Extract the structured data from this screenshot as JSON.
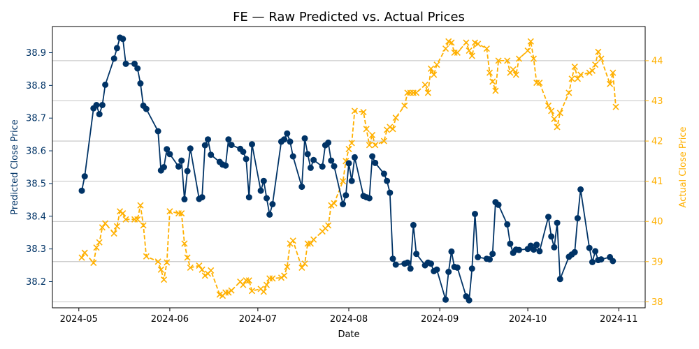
{
  "chart_data": {
    "type": "line",
    "title": "FE — Raw Predicted vs. Actual Prices",
    "xlabel": "Date",
    "ylabel_left": "Predicted Close Price",
    "ylabel_right": "Actual Close Price",
    "x_ticks": [
      "2024-05",
      "2024-06",
      "2024-07",
      "2024-08",
      "2024-09",
      "2024-10",
      "2024-11"
    ],
    "y_left_ticks": [
      "38.2",
      "38.3",
      "38.4",
      "38.5",
      "38.6",
      "38.7",
      "38.8",
      "38.9"
    ],
    "y_right_ticks": [
      "38",
      "39",
      "40",
      "41",
      "42",
      "43",
      "44"
    ],
    "ylim_left": [
      38.12,
      38.98
    ],
    "ylim_right": [
      37.85,
      44.85
    ],
    "grid": "horizontal, right axis",
    "colors": {
      "predicted": "#003366",
      "actual": "#FFB000",
      "grid": "#b0b0b0"
    },
    "series": [
      {
        "axis": "left",
        "style": "solid, circle markers",
        "points": [
          [
            "2024-05-02",
            38.478
          ],
          [
            "2024-05-03",
            38.522
          ],
          [
            "2024-05-06",
            38.73
          ],
          [
            "2024-05-07",
            38.74
          ],
          [
            "2024-05-08",
            38.712
          ],
          [
            "2024-05-09",
            38.74
          ],
          [
            "2024-05-10",
            38.802
          ],
          [
            "2024-05-13",
            38.882
          ],
          [
            "2024-05-14",
            38.914
          ],
          [
            "2024-05-15",
            38.946
          ],
          [
            "2024-05-16",
            38.942
          ],
          [
            "2024-05-17",
            38.866
          ],
          [
            "2024-05-20",
            38.866
          ],
          [
            "2024-05-21",
            38.852
          ],
          [
            "2024-05-22",
            38.806
          ],
          [
            "2024-05-23",
            38.738
          ],
          [
            "2024-05-24",
            38.728
          ],
          [
            "2024-05-28",
            38.66
          ],
          [
            "2024-05-29",
            38.54
          ],
          [
            "2024-05-30",
            38.55
          ],
          [
            "2024-05-31",
            38.605
          ],
          [
            "2024-06-01",
            38.59
          ],
          [
            "2024-06-04",
            38.552
          ],
          [
            "2024-06-05",
            38.57
          ],
          [
            "2024-06-06",
            38.452
          ],
          [
            "2024-06-07",
            38.538
          ],
          [
            "2024-06-08",
            38.607
          ],
          [
            "2024-06-11",
            38.453
          ],
          [
            "2024-06-12",
            38.458
          ],
          [
            "2024-06-13",
            38.617
          ],
          [
            "2024-06-14",
            38.635
          ],
          [
            "2024-06-15",
            38.588
          ],
          [
            "2024-06-18",
            38.566
          ],
          [
            "2024-06-19",
            38.558
          ],
          [
            "2024-06-20",
            38.555
          ],
          [
            "2024-06-21",
            38.635
          ],
          [
            "2024-06-22",
            38.618
          ],
          [
            "2024-06-25",
            38.606
          ],
          [
            "2024-06-26",
            38.597
          ],
          [
            "2024-06-27",
            38.575
          ],
          [
            "2024-06-28",
            38.458
          ],
          [
            "2024-06-29",
            38.62
          ],
          [
            "2024-07-02",
            38.478
          ],
          [
            "2024-07-03",
            38.508
          ],
          [
            "2024-07-04",
            38.455
          ],
          [
            "2024-07-05",
            38.405
          ],
          [
            "2024-07-06",
            38.437
          ],
          [
            "2024-07-09",
            38.628
          ],
          [
            "2024-07-10",
            38.635
          ],
          [
            "2024-07-11",
            38.653
          ],
          [
            "2024-07-12",
            38.628
          ],
          [
            "2024-07-13",
            38.583
          ],
          [
            "2024-07-16",
            38.49
          ],
          [
            "2024-07-17",
            38.638
          ],
          [
            "2024-07-18",
            38.59
          ],
          [
            "2024-07-19",
            38.548
          ],
          [
            "2024-07-20",
            38.572
          ],
          [
            "2024-07-23",
            38.552
          ],
          [
            "2024-07-24",
            38.617
          ],
          [
            "2024-07-25",
            38.625
          ],
          [
            "2024-07-26",
            38.57
          ],
          [
            "2024-07-27",
            38.553
          ],
          [
            "2024-07-30",
            38.437
          ],
          [
            "2024-07-31",
            38.464
          ],
          [
            "2024-08-01",
            38.562
          ],
          [
            "2024-08-02",
            38.508
          ],
          [
            "2024-08-03",
            38.58
          ],
          [
            "2024-08-06",
            38.462
          ],
          [
            "2024-08-07",
            38.458
          ],
          [
            "2024-08-08",
            38.455
          ],
          [
            "2024-08-09",
            38.583
          ],
          [
            "2024-08-10",
            38.563
          ],
          [
            "2024-08-13",
            38.53
          ],
          [
            "2024-08-14",
            38.508
          ],
          [
            "2024-08-15",
            38.472
          ],
          [
            "2024-08-16",
            38.27
          ],
          [
            "2024-08-17",
            38.252
          ],
          [
            "2024-08-20",
            38.255
          ],
          [
            "2024-08-21",
            38.258
          ],
          [
            "2024-08-22",
            38.24
          ],
          [
            "2024-08-23",
            38.373
          ],
          [
            "2024-08-24",
            38.285
          ],
          [
            "2024-08-27",
            38.25
          ],
          [
            "2024-08-28",
            38.258
          ],
          [
            "2024-08-29",
            38.255
          ],
          [
            "2024-08-30",
            38.232
          ],
          [
            "2024-08-31",
            38.237
          ],
          [
            "2024-09-03",
            38.145
          ],
          [
            "2024-09-04",
            38.23
          ],
          [
            "2024-09-05",
            38.292
          ],
          [
            "2024-09-06",
            38.245
          ],
          [
            "2024-09-07",
            38.243
          ],
          [
            "2024-09-10",
            38.155
          ],
          [
            "2024-09-11",
            38.143
          ],
          [
            "2024-09-12",
            38.24
          ],
          [
            "2024-09-13",
            38.407
          ],
          [
            "2024-09-14",
            38.275
          ],
          [
            "2024-09-17",
            38.27
          ],
          [
            "2024-09-18",
            38.268
          ],
          [
            "2024-09-19",
            38.285
          ],
          [
            "2024-09-20",
            38.443
          ],
          [
            "2024-09-21",
            38.435
          ],
          [
            "2024-09-24",
            38.375
          ],
          [
            "2024-09-25",
            38.316
          ],
          [
            "2024-09-26",
            38.288
          ],
          [
            "2024-09-27",
            38.298
          ],
          [
            "2024-09-28",
            38.297
          ],
          [
            "2024-10-01",
            38.3
          ],
          [
            "2024-10-02",
            38.31
          ],
          [
            "2024-10-03",
            38.298
          ],
          [
            "2024-10-04",
            38.313
          ],
          [
            "2024-10-05",
            38.293
          ],
          [
            "2024-10-08",
            38.398
          ],
          [
            "2024-10-09",
            38.338
          ],
          [
            "2024-10-10",
            38.305
          ],
          [
            "2024-10-11",
            38.38
          ],
          [
            "2024-10-12",
            38.208
          ],
          [
            "2024-10-15",
            38.276
          ],
          [
            "2024-10-16",
            38.283
          ],
          [
            "2024-10-17",
            38.29
          ],
          [
            "2024-10-18",
            38.394
          ],
          [
            "2024-10-19",
            38.482
          ],
          [
            "2024-10-22",
            38.303
          ],
          [
            "2024-10-23",
            38.26
          ],
          [
            "2024-10-24",
            38.293
          ],
          [
            "2024-10-25",
            38.266
          ],
          [
            "2024-10-26",
            38.268
          ],
          [
            "2024-10-29",
            38.275
          ],
          [
            "2024-10-30",
            38.263
          ]
        ]
      },
      {
        "axis": "right",
        "style": "dashed, x markers",
        "points": [
          [
            "2024-05-02",
            39.1
          ],
          [
            "2024-05-03",
            39.22
          ],
          [
            "2024-05-06",
            38.97
          ],
          [
            "2024-05-07",
            39.35
          ],
          [
            "2024-05-08",
            39.48
          ],
          [
            "2024-05-09",
            39.85
          ],
          [
            "2024-05-10",
            39.95
          ],
          [
            "2024-05-13",
            39.7
          ],
          [
            "2024-05-14",
            39.88
          ],
          [
            "2024-05-15",
            40.25
          ],
          [
            "2024-05-16",
            40.2
          ],
          [
            "2024-05-17",
            40.05
          ],
          [
            "2024-05-20",
            40.05
          ],
          [
            "2024-05-21",
            40.05
          ],
          [
            "2024-05-22",
            40.4
          ],
          [
            "2024-05-23",
            39.9
          ],
          [
            "2024-05-24",
            39.13
          ],
          [
            "2024-05-28",
            39.0
          ],
          [
            "2024-05-29",
            38.8
          ],
          [
            "2024-05-30",
            38.55
          ],
          [
            "2024-05-31",
            38.98
          ],
          [
            "2024-06-01",
            40.25
          ],
          [
            "2024-06-04",
            40.2
          ],
          [
            "2024-06-05",
            40.2
          ],
          [
            "2024-06-06",
            39.45
          ],
          [
            "2024-06-07",
            39.1
          ],
          [
            "2024-06-08",
            38.85
          ],
          [
            "2024-06-11",
            38.9
          ],
          [
            "2024-06-12",
            38.8
          ],
          [
            "2024-06-13",
            38.65
          ],
          [
            "2024-06-14",
            38.7
          ],
          [
            "2024-06-15",
            38.78
          ],
          [
            "2024-06-18",
            38.18
          ],
          [
            "2024-06-19",
            38.15
          ],
          [
            "2024-06-20",
            38.23
          ],
          [
            "2024-06-21",
            38.23
          ],
          [
            "2024-06-22",
            38.28
          ],
          [
            "2024-06-25",
            38.5
          ],
          [
            "2024-06-26",
            38.42
          ],
          [
            "2024-06-27",
            38.53
          ],
          [
            "2024-06-28",
            38.53
          ],
          [
            "2024-06-29",
            38.27
          ],
          [
            "2024-07-02",
            38.32
          ],
          [
            "2024-07-03",
            38.25
          ],
          [
            "2024-07-04",
            38.42
          ],
          [
            "2024-07-05",
            38.58
          ],
          [
            "2024-07-06",
            38.58
          ],
          [
            "2024-07-09",
            38.6
          ],
          [
            "2024-07-10",
            38.65
          ],
          [
            "2024-07-11",
            38.87
          ],
          [
            "2024-07-12",
            39.45
          ],
          [
            "2024-07-13",
            39.52
          ],
          [
            "2024-07-16",
            38.85
          ],
          [
            "2024-07-17",
            38.95
          ],
          [
            "2024-07-18",
            39.45
          ],
          [
            "2024-07-19",
            39.45
          ],
          [
            "2024-07-20",
            39.55
          ],
          [
            "2024-07-23",
            39.75
          ],
          [
            "2024-07-24",
            39.83
          ],
          [
            "2024-07-25",
            39.9
          ],
          [
            "2024-07-26",
            40.4
          ],
          [
            "2024-07-27",
            40.45
          ],
          [
            "2024-07-30",
            41.0
          ],
          [
            "2024-07-31",
            41.5
          ],
          [
            "2024-08-01",
            41.8
          ],
          [
            "2024-08-02",
            41.95
          ],
          [
            "2024-08-03",
            42.75
          ],
          [
            "2024-08-06",
            42.72
          ],
          [
            "2024-08-07",
            42.3
          ],
          [
            "2024-08-08",
            41.9
          ],
          [
            "2024-08-09",
            42.15
          ],
          [
            "2024-08-10",
            41.9
          ],
          [
            "2024-08-13",
            42.0
          ],
          [
            "2024-08-14",
            42.28
          ],
          [
            "2024-08-15",
            42.35
          ],
          [
            "2024-08-16",
            42.3
          ],
          [
            "2024-08-17",
            42.58
          ],
          [
            "2024-08-20",
            42.88
          ],
          [
            "2024-08-21",
            43.2
          ],
          [
            "2024-08-22",
            43.2
          ],
          [
            "2024-08-23",
            43.2
          ],
          [
            "2024-08-24",
            43.2
          ],
          [
            "2024-08-27",
            43.4
          ],
          [
            "2024-08-28",
            43.2
          ],
          [
            "2024-08-29",
            43.8
          ],
          [
            "2024-08-30",
            43.65
          ],
          [
            "2024-08-31",
            43.9
          ],
          [
            "2024-09-03",
            44.3
          ],
          [
            "2024-09-04",
            44.48
          ],
          [
            "2024-09-05",
            44.45
          ],
          [
            "2024-09-06",
            44.2
          ],
          [
            "2024-09-07",
            44.2
          ],
          [
            "2024-09-10",
            44.45
          ],
          [
            "2024-09-11",
            44.25
          ],
          [
            "2024-09-12",
            44.12
          ],
          [
            "2024-09-13",
            44.45
          ],
          [
            "2024-09-14",
            44.42
          ],
          [
            "2024-09-17",
            44.3
          ],
          [
            "2024-09-18",
            43.7
          ],
          [
            "2024-09-19",
            43.48
          ],
          [
            "2024-09-20",
            43.25
          ],
          [
            "2024-09-21",
            44.0
          ],
          [
            "2024-09-24",
            44.0
          ],
          [
            "2024-09-25",
            43.7
          ],
          [
            "2024-09-26",
            43.78
          ],
          [
            "2024-09-27",
            43.65
          ],
          [
            "2024-09-28",
            44.05
          ],
          [
            "2024-10-01",
            44.25
          ],
          [
            "2024-10-02",
            44.48
          ],
          [
            "2024-10-03",
            44.05
          ],
          [
            "2024-10-04",
            43.45
          ],
          [
            "2024-10-05",
            43.45
          ],
          [
            "2024-10-08",
            42.88
          ],
          [
            "2024-10-09",
            42.75
          ],
          [
            "2024-10-10",
            42.55
          ],
          [
            "2024-10-11",
            42.35
          ],
          [
            "2024-10-12",
            42.7
          ],
          [
            "2024-10-15",
            43.2
          ],
          [
            "2024-10-16",
            43.55
          ],
          [
            "2024-10-17",
            43.85
          ],
          [
            "2024-10-18",
            43.55
          ],
          [
            "2024-10-19",
            43.65
          ],
          [
            "2024-10-22",
            43.7
          ],
          [
            "2024-10-23",
            43.75
          ],
          [
            "2024-10-24",
            43.9
          ],
          [
            "2024-10-25",
            44.22
          ],
          [
            "2024-10-26",
            44.05
          ],
          [
            "2024-10-29",
            43.42
          ],
          [
            "2024-10-30",
            43.7
          ],
          [
            "2024-10-31",
            42.85
          ]
        ]
      }
    ]
  }
}
